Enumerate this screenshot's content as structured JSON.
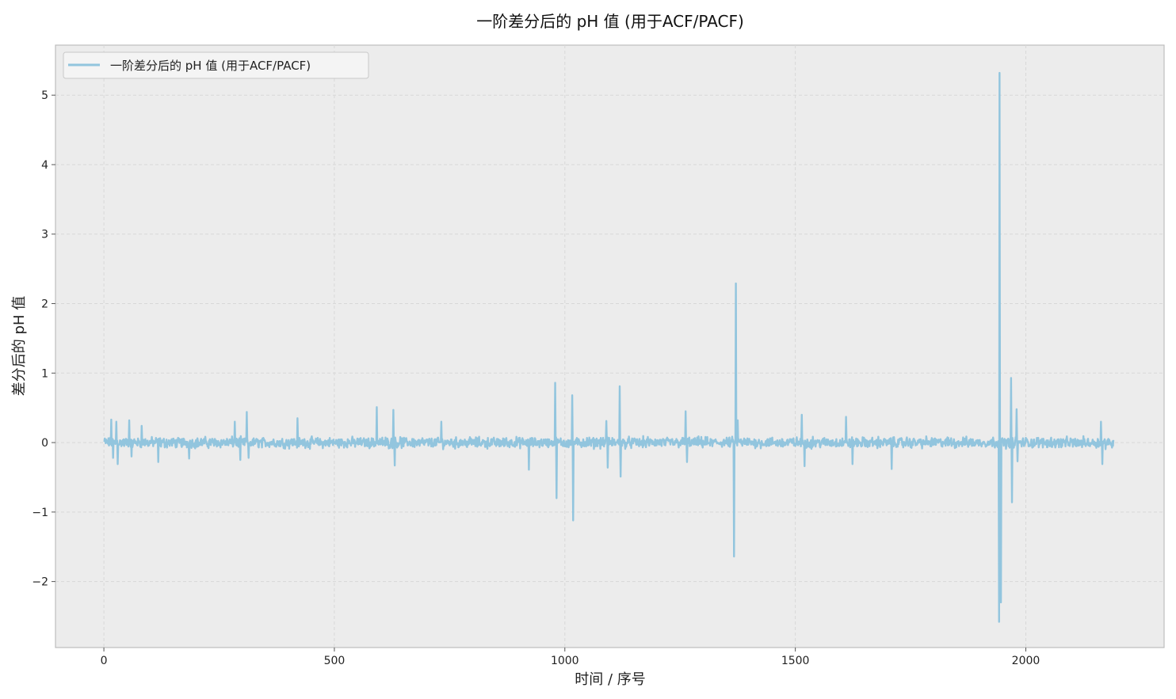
{
  "chart_data": {
    "type": "line",
    "title": "一阶差分后的  pH 值 (用于ACF/PACF)",
    "xlabel": "时间 / 序号",
    "ylabel": "差分后的 pH 值",
    "xlim": [
      -105,
      2300
    ],
    "ylim": [
      -2.95,
      5.72
    ],
    "x_ticks": [
      0,
      500,
      1000,
      1500,
      2000
    ],
    "x_tick_labels": [
      "0",
      "500",
      "1000",
      "1500",
      "2000"
    ],
    "y_ticks": [
      -2,
      -1,
      0,
      1,
      2,
      3,
      4,
      5
    ],
    "y_tick_labels": [
      "−2",
      "−1",
      "0",
      "1",
      "2",
      "3",
      "4",
      "5"
    ],
    "grid": true,
    "legend_position": "upper-left",
    "series": [
      {
        "name": "一阶差分后的  pH 值 (用于ACF/PACF)",
        "color": "#92c5de",
        "x_start": 1,
        "x_end": 2190,
        "noise_amplitude": 0.1,
        "spikes": [
          {
            "x": 16,
            "y": 0.33
          },
          {
            "x": 20,
            "y": -0.22
          },
          {
            "x": 27,
            "y": 0.3
          },
          {
            "x": 30,
            "y": -0.31
          },
          {
            "x": 55,
            "y": 0.32
          },
          {
            "x": 60,
            "y": -0.2
          },
          {
            "x": 82,
            "y": 0.24
          },
          {
            "x": 118,
            "y": -0.28
          },
          {
            "x": 185,
            "y": -0.23
          },
          {
            "x": 284,
            "y": 0.3
          },
          {
            "x": 296,
            "y": -0.25
          },
          {
            "x": 310,
            "y": 0.44
          },
          {
            "x": 314,
            "y": -0.22
          },
          {
            "x": 420,
            "y": 0.35
          },
          {
            "x": 592,
            "y": 0.51
          },
          {
            "x": 628,
            "y": 0.47
          },
          {
            "x": 631,
            "y": -0.33
          },
          {
            "x": 732,
            "y": 0.3
          },
          {
            "x": 922,
            "y": -0.39
          },
          {
            "x": 979,
            "y": 0.86
          },
          {
            "x": 982,
            "y": -0.8
          },
          {
            "x": 1016,
            "y": 0.68
          },
          {
            "x": 1018,
            "y": -1.12
          },
          {
            "x": 1090,
            "y": 0.31
          },
          {
            "x": 1093,
            "y": -0.36
          },
          {
            "x": 1119,
            "y": 0.81
          },
          {
            "x": 1121,
            "y": -0.49
          },
          {
            "x": 1262,
            "y": 0.45
          },
          {
            "x": 1265,
            "y": -0.28
          },
          {
            "x": 1367,
            "y": -1.64
          },
          {
            "x": 1371,
            "y": 2.29
          },
          {
            "x": 1375,
            "y": 0.32
          },
          {
            "x": 1514,
            "y": 0.4
          },
          {
            "x": 1520,
            "y": -0.34
          },
          {
            "x": 1610,
            "y": 0.37
          },
          {
            "x": 1624,
            "y": -0.31
          },
          {
            "x": 1709,
            "y": -0.38
          },
          {
            "x": 1946,
            "y": -2.3
          },
          {
            "x": 1943,
            "y": 5.32
          },
          {
            "x": 1942,
            "y": -2.58
          },
          {
            "x": 1968,
            "y": 0.93
          },
          {
            "x": 1970,
            "y": -0.86
          },
          {
            "x": 1980,
            "y": 0.48
          },
          {
            "x": 1982,
            "y": -0.27
          },
          {
            "x": 2163,
            "y": 0.3
          },
          {
            "x": 2166,
            "y": -0.31
          }
        ]
      }
    ]
  }
}
